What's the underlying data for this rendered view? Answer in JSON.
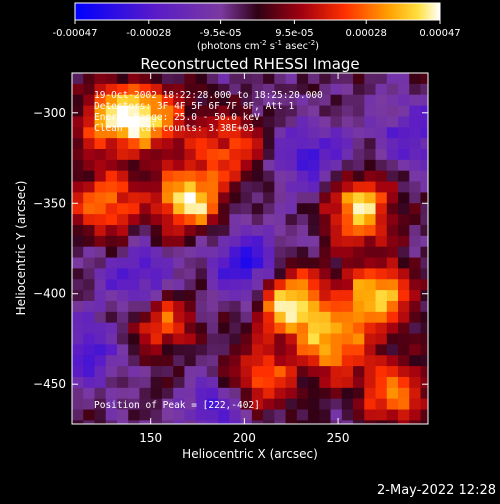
{
  "chart_data": {
    "type": "heatmap",
    "title": "Reconstructed RHESSI Image",
    "xlabel": "Heliocentric X (arcsec)",
    "ylabel": "Heliocentric Y (arcsec)",
    "xlim": [
      108,
      298
    ],
    "ylim": [
      -472,
      -278
    ],
    "x_ticks": [
      150,
      200,
      250
    ],
    "y_ticks": [
      -300,
      -350,
      -400,
      -450
    ],
    "colorbar": {
      "range": [
        -0.00047,
        0.00047
      ],
      "tick_values": [
        -0.00047,
        -0.00028,
        -9.5e-05,
        9.5e-05,
        0.00028,
        0.00047
      ],
      "tick_labels": [
        "-0.00047",
        "-0.00028",
        "-9.5e-05",
        "9.5e-05",
        "0.00028",
        "0.00047"
      ],
      "units_label": "(photons cm-2 s-1 asec-2)"
    },
    "annotations": [
      "19-Oct-2002 18:22:28.000 to 18:25:20.000",
      "Detectors: 3F 4F 5F 6F 7F 8F, Att 1",
      "Energy Range: 25.0 - 50.0 keV",
      "Clean   Total counts: 3.38E+03"
    ],
    "peak_label": "Position of Peak = [222,-402]",
    "peak_position": [
      222,
      -402
    ],
    "bright_regions": [
      {
        "x": 128,
        "y": -300,
        "intensity": 0.9
      },
      {
        "x": 168,
        "y": -345,
        "intensity": 0.95
      },
      {
        "x": 122,
        "y": -347,
        "intensity": 0.7
      },
      {
        "x": 258,
        "y": -350,
        "intensity": 0.9
      },
      {
        "x": 222,
        "y": -402,
        "intensity": 1.0
      },
      {
        "x": 268,
        "y": -398,
        "intensity": 0.9
      },
      {
        "x": 245,
        "y": -425,
        "intensity": 0.8
      },
      {
        "x": 152,
        "y": -410,
        "intensity": 0.7
      },
      {
        "x": 205,
        "y": -445,
        "intensity": 0.7
      },
      {
        "x": 278,
        "y": -452,
        "intensity": 0.7
      },
      {
        "x": 150,
        "y": -300,
        "intensity": 0.6
      },
      {
        "x": 190,
        "y": -315,
        "intensity": 0.55
      }
    ],
    "dark_regions": [
      {
        "x": 198,
        "y": -380,
        "intensity": -0.7
      },
      {
        "x": 142,
        "y": -392,
        "intensity": -0.6
      },
      {
        "x": 232,
        "y": -322,
        "intensity": -0.55
      },
      {
        "x": 185,
        "y": -460,
        "intensity": -0.5
      },
      {
        "x": 112,
        "y": -430,
        "intensity": -0.5
      },
      {
        "x": 288,
        "y": -310,
        "intensity": -0.45
      }
    ]
  },
  "footer": {
    "timestamp": "2-May-2022 12:28"
  }
}
